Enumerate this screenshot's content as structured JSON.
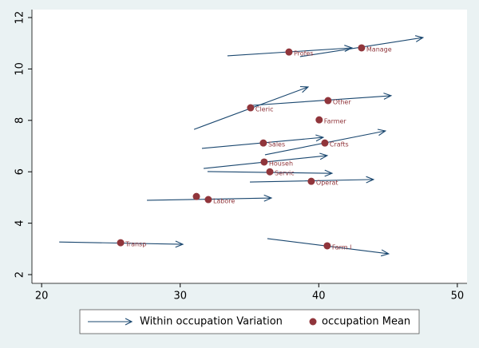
{
  "chart_data": {
    "type": "arrow-scatter",
    "xlim": [
      19.3,
      50.7
    ],
    "xticks": [
      20,
      30,
      40,
      50
    ],
    "ylim": [
      1.66,
      12.31
    ],
    "yticks": [
      2,
      4,
      6,
      8,
      10,
      12
    ],
    "grid": false,
    "series": [
      {
        "name": "Within occupation Variation",
        "color": "#1a476f",
        "x": [
          33.41,
          38.65,
          31.0,
          35.08,
          31.57,
          36.12,
          31.69,
          31.97,
          35.03,
          27.6,
          21.27,
          36.29
        ],
        "y": [
          10.51,
          10.48,
          7.65,
          8.58,
          6.91,
          6.66,
          6.13,
          6.01,
          5.6,
          4.89,
          3.27,
          3.4
        ],
        "x_end": [
          42.39,
          47.52,
          39.23,
          45.22,
          40.32,
          44.81,
          40.61,
          40.96,
          43.95,
          36.58,
          30.19,
          45.04
        ],
        "y_end": [
          10.82,
          11.22,
          9.3,
          8.96,
          7.34,
          7.59,
          6.63,
          5.94,
          5.7,
          4.98,
          3.18,
          2.81
        ]
      },
      {
        "name": "occupation Mean",
        "color": "#90353b",
        "x": [
          37.85,
          43.09,
          35.08,
          40.67,
          40.03,
          36.0,
          40.44,
          36.06,
          36.47,
          39.46,
          32.03,
          31.17,
          25.7,
          40.61
        ],
        "y": [
          10.66,
          10.82,
          8.49,
          8.77,
          8.02,
          7.12,
          7.12,
          6.38,
          6.0,
          5.63,
          4.92,
          5.04,
          3.24,
          3.12
        ],
        "labels": [
          "Profes",
          "Manage",
          "Cleric",
          "Other",
          "Farmer",
          "Sales",
          "Crafts",
          "Househ",
          "Servic",
          "Operat",
          "Labore",
          null,
          "Transp",
          "Farm l"
        ]
      }
    ]
  }
}
